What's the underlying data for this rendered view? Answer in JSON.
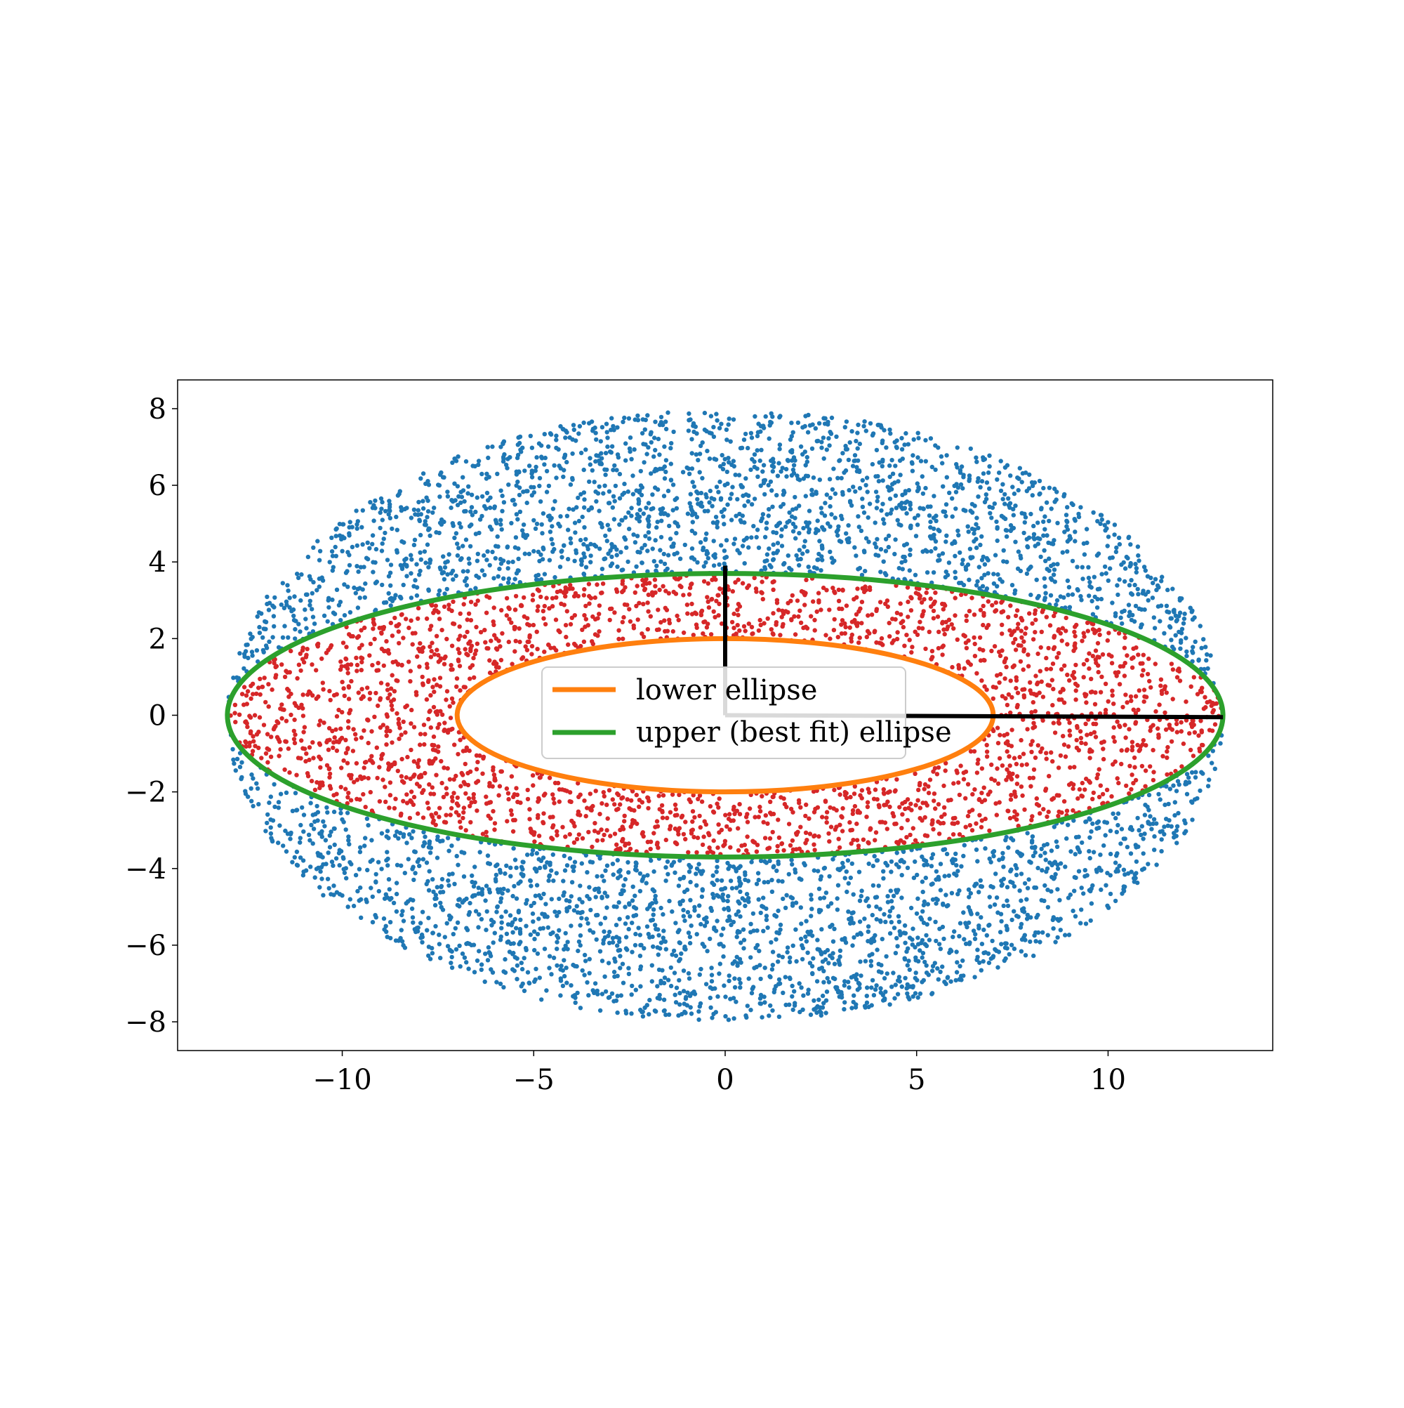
{
  "chart_data": {
    "type": "scatter",
    "title": "",
    "xlabel": "",
    "ylabel": "",
    "xlim": [
      -14.3,
      14.3
    ],
    "ylim": [
      -8.75,
      8.75
    ],
    "x_ticks": [
      -10,
      -5,
      0,
      5,
      10
    ],
    "x_tick_labels": [
      "−10",
      "−5",
      "0",
      "5",
      "10"
    ],
    "y_ticks": [
      -8,
      -6,
      -4,
      -2,
      0,
      2,
      4,
      6,
      8
    ],
    "y_tick_labels": [
      "−8",
      "−6",
      "−4",
      "−2",
      "0",
      "2",
      "4",
      "6",
      "8"
    ],
    "grid": false,
    "legend_position": "center",
    "scatter_series": [
      {
        "role": "all sample points (outside upper ellipse)",
        "color": "#1f77b4",
        "distribution": "uniform in ellipse",
        "semi_axis_x": 13,
        "semi_axis_y": 8,
        "approx_count": 4200
      },
      {
        "role": "points between lower and upper ellipse",
        "color": "#d62728",
        "distribution": "uniform in annulus",
        "inner_semi_axis_x": 7,
        "inner_semi_axis_y": 2,
        "outer_semi_axis_x": 13,
        "outer_semi_axis_y": 3.7,
        "approx_count": 2500
      }
    ],
    "series": [
      {
        "name": "lower ellipse",
        "color": "#ff7f0e",
        "type": "ellipse",
        "center": [
          0,
          0
        ],
        "semi_axis_x": 7,
        "semi_axis_y": 2
      },
      {
        "name": "upper (best fit) ellipse",
        "color": "#2ca02c",
        "type": "ellipse",
        "center": [
          0,
          0
        ],
        "semi_axis_x": 13,
        "semi_axis_y": 3.7
      }
    ],
    "axis_segments": [
      {
        "name": "vertical-axis-segment",
        "color": "#000000",
        "x": [
          0,
          0
        ],
        "y": [
          0,
          3.9
        ]
      },
      {
        "name": "horizontal-axis-segment",
        "color": "#000000",
        "x": [
          0,
          13
        ],
        "y": [
          0,
          -0.05
        ]
      }
    ],
    "legend": [
      {
        "label": "lower ellipse",
        "color": "#ff7f0e"
      },
      {
        "label": "upper (best fit) ellipse",
        "color": "#2ca02c"
      }
    ]
  }
}
